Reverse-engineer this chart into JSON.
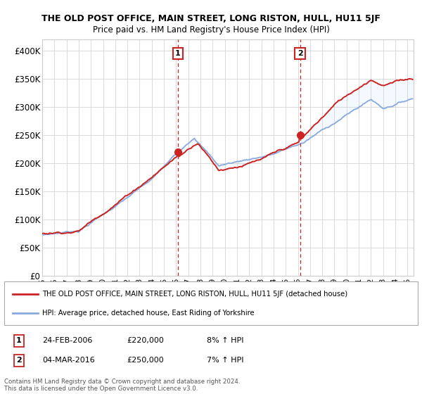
{
  "title": "THE OLD POST OFFICE, MAIN STREET, LONG RISTON, HULL, HU11 5JF",
  "subtitle": "Price paid vs. HM Land Registry's House Price Index (HPI)",
  "ylabel_ticks": [
    "£0",
    "£50K",
    "£100K",
    "£150K",
    "£200K",
    "£250K",
    "£300K",
    "£350K",
    "£400K"
  ],
  "ytick_values": [
    0,
    50000,
    100000,
    150000,
    200000,
    250000,
    300000,
    350000,
    400000
  ],
  "ylim": [
    0,
    420000
  ],
  "xlim_start": 1995.0,
  "xlim_end": 2025.5,
  "legend_line1": "THE OLD POST OFFICE, MAIN STREET, LONG RISTON, HULL, HU11 5JF (detached house)",
  "legend_line2": "HPI: Average price, detached house, East Riding of Yorkshire",
  "sale1_date": "24-FEB-2006",
  "sale1_price": "£220,000",
  "sale1_hpi": "8% ↑ HPI",
  "sale1_x": 2006.15,
  "sale1_y": 220000,
  "sale2_date": "04-MAR-2016",
  "sale2_price": "£250,000",
  "sale2_hpi": "7% ↑ HPI",
  "sale2_x": 2016.18,
  "sale2_y": 250000,
  "red_color": "#cc2222",
  "blue_color": "#88aadd",
  "fill_color": "#ddeeff",
  "copyright_text": "Contains HM Land Registry data © Crown copyright and database right 2024.\nThis data is licensed under the Open Government Licence v3.0.",
  "background_color": "#ffffff",
  "grid_color": "#cccccc"
}
